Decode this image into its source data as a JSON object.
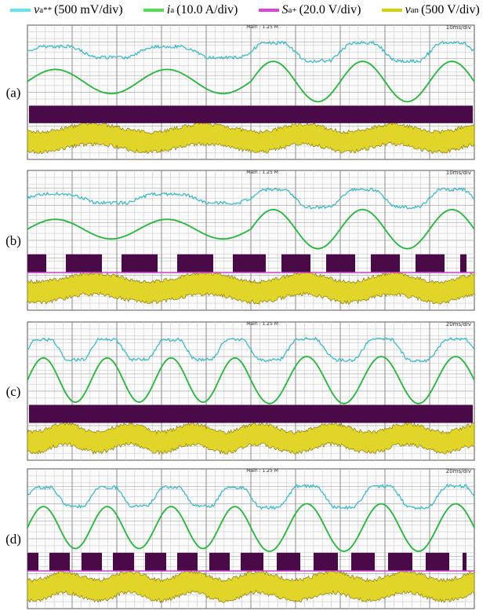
{
  "legend": [
    {
      "symbol": "v",
      "sub": "a",
      "sup": "**",
      "scale": "(500 mV/div)",
      "color": "#5ee6f0"
    },
    {
      "symbol": "i",
      "sub": "a",
      "sup": "",
      "scale": "(10.0 A/div)",
      "color": "#4fe04f"
    },
    {
      "symbol": "S",
      "sub": "a+",
      "sup": "",
      "scale": "(20.0 V/div)",
      "color": "#e040e0"
    },
    {
      "symbol": "v",
      "sub": "an",
      "sup": "",
      "scale": "(500 V/div)",
      "color": "#d8d000"
    }
  ],
  "panels": [
    {
      "label": "(a)",
      "main": "Main : 1.25 M",
      "timebase": "10ms/div"
    },
    {
      "label": "(b)",
      "main": "Main : 1.25 M",
      "timebase": "10ms/div"
    },
    {
      "label": "(c)",
      "main": "Main : 1.25 M",
      "timebase": "20ms/div"
    },
    {
      "label": "(d)",
      "main": "Main : 1.25 M",
      "timebase": "20ms/div"
    }
  ]
}
